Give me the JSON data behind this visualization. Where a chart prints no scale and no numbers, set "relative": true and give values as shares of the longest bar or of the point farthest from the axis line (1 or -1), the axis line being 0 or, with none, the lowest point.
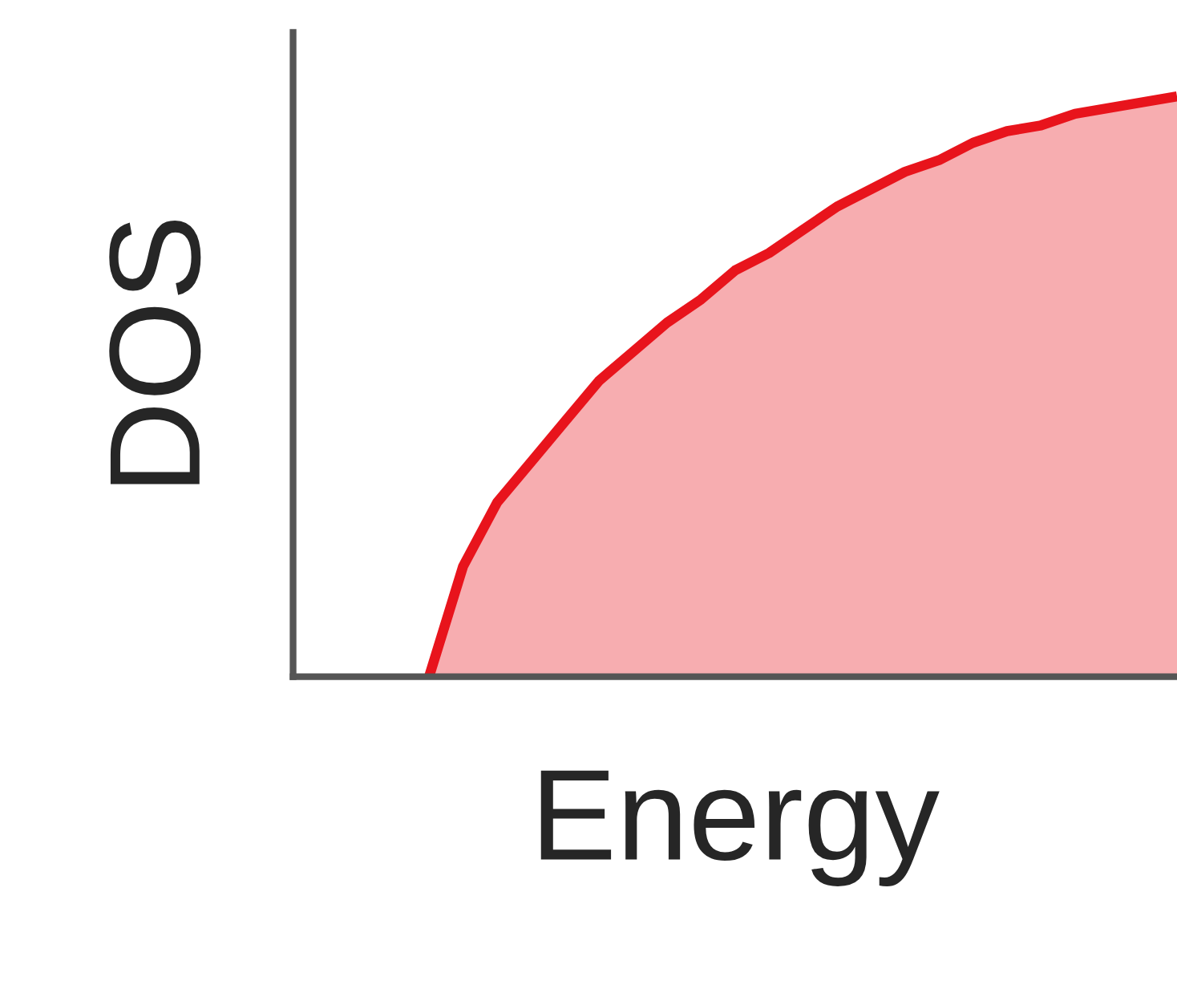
{
  "chart_data": {
    "type": "area",
    "xlabel": "Energy",
    "ylabel": "DOS",
    "relative": true,
    "categories": [
      null,
      null,
      null,
      null,
      null,
      null,
      null,
      null,
      null,
      null,
      null,
      null,
      null,
      null,
      null,
      null,
      null,
      null,
      null,
      null,
      null,
      null,
      null,
      null,
      null,
      null,
      null
    ],
    "series": [
      {
        "color": "#e8141c",
        "values": [
          null,
          null,
          null,
          null,
          0,
          0.19,
          0.3,
          0.37,
          0.44,
          0.51,
          0.56,
          0.61,
          0.65,
          0.7,
          0.73,
          0.77,
          0.81,
          0.84,
          0.87,
          0.89,
          0.92,
          0.94,
          0.95,
          0.97,
          0.98,
          0.99,
          1
        ]
      }
    ],
    "legend": false
  }
}
